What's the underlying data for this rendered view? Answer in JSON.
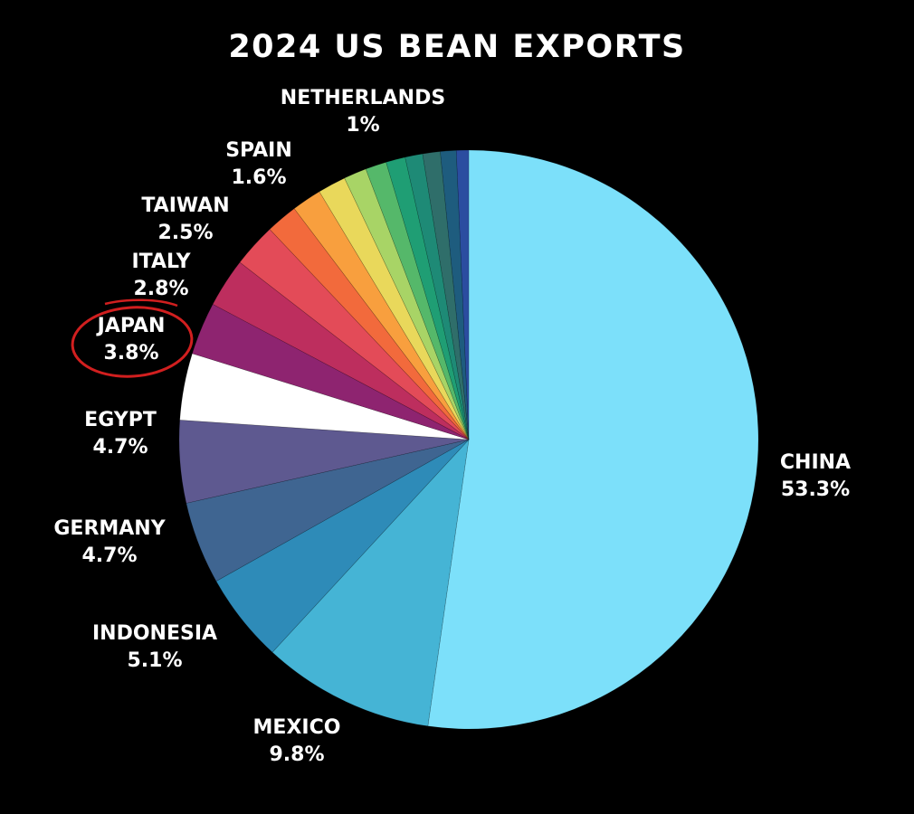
{
  "chart_data": {
    "type": "pie",
    "title": "2024 US BEAN EXPORTS",
    "start_angle_deg": 90,
    "direction": "clockwise",
    "slices": [
      {
        "label": "CHINA",
        "value_text": "53.3%",
        "value": 53.3,
        "color": "#7CE0FA"
      },
      {
        "label": "MEXICO",
        "value_text": "9.8%",
        "value": 9.8,
        "color": "#45B4D5"
      },
      {
        "label": "INDONESIA",
        "value_text": "5.1%",
        "value": 5.1,
        "color": "#2E8BB8"
      },
      {
        "label": "GERMANY",
        "value_text": "4.7%",
        "value": 4.7,
        "color": "#3F6591"
      },
      {
        "label": "EGYPT",
        "value_text": "4.7%",
        "value": 4.7,
        "color": "#5E5990"
      },
      {
        "label": "JAPAN",
        "value_text": "3.8%",
        "value": 3.8,
        "color": "#FFFFFF",
        "circled": true
      },
      {
        "label": "",
        "value": 3.0,
        "color": "#8E2470"
      },
      {
        "label": "ITALY",
        "value_text": "2.8%",
        "value": 2.8,
        "color": "#BD2E5E"
      },
      {
        "label": "TAIWAN",
        "value_text": "2.5%",
        "value": 2.5,
        "color": "#E34B58"
      },
      {
        "label": "",
        "value": 1.8,
        "color": "#F26A3C"
      },
      {
        "label": "",
        "value": 1.7,
        "color": "#F89F3E"
      },
      {
        "label": "SPAIN",
        "value_text": "1.6%",
        "value": 1.6,
        "color": "#E9D85B"
      },
      {
        "label": "",
        "value": 1.3,
        "color": "#A8D466"
      },
      {
        "label": "",
        "value": 1.2,
        "color": "#55B86A"
      },
      {
        "label": "",
        "value": 1.1,
        "color": "#1F9E74"
      },
      {
        "label": "",
        "value": 1.0,
        "color": "#1E8A76"
      },
      {
        "label": "NETHERLANDS",
        "value_text": "1%",
        "value": 1.0,
        "color": "#2F6E6A"
      },
      {
        "label": "",
        "value": 0.9,
        "color": "#1E5C7E"
      },
      {
        "label": "",
        "value": 0.7,
        "color": "#2B4DA0"
      }
    ],
    "highlight_color": "#D11F1F"
  }
}
